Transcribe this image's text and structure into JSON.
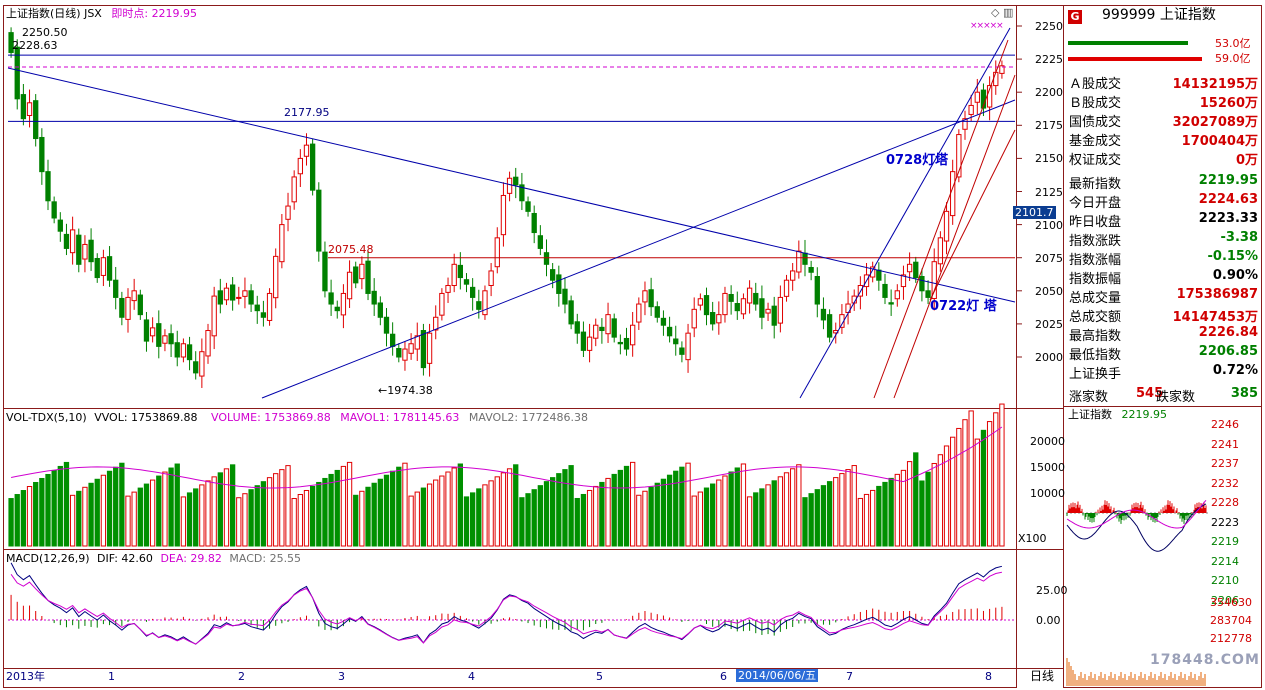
{
  "main": {
    "title": "上证指数(日线) JSX",
    "instant_label": "即时点:",
    "instant_value": "2219.95",
    "annotations": {
      "high_2250": "2250.50",
      "high_2228": "2228.63",
      "peak_2177": "2177.95",
      "mid_2075": "2075.48",
      "low_1974": "←1974.38",
      "lighthouse_0728": "0728灯塔",
      "lighthouse_0722": "0722灯 塔"
    },
    "cursor_value": "2101.7"
  },
  "volume": {
    "title": "VOL-TDX(5,10)",
    "vvol": "VVOL: 1753869.88",
    "volume": "VOLUME: 1753869.88",
    "mavol1": "MAVOL1: 1781145.63",
    "mavol2": "MAVOL2: 1772486.38",
    "unit": "X100"
  },
  "macd": {
    "title": "MACD(12,26,9)",
    "dif": "DIF: 42.60",
    "dea": "DEA: 29.82",
    "macd": "MACD: 25.55"
  },
  "x_axis": {
    "labels": [
      "2013年",
      "1",
      "2",
      "3",
      "4",
      "5",
      "6",
      "7",
      "8"
    ],
    "cursor_date": "2014/06/06/五",
    "period": "日线"
  },
  "info": {
    "code": "999999",
    "name": "上证指数",
    "logo": "G",
    "buy_amount": "53.0亿",
    "sell_amount": "59.0亿",
    "rows": [
      {
        "k": "Ａ股成交",
        "v": "14132195万",
        "c": "#d00000"
      },
      {
        "k": "Ｂ股成交",
        "v": "15260万",
        "c": "#d00000"
      },
      {
        "k": "国债成交",
        "v": "32027089万",
        "c": "#d00000"
      },
      {
        "k": "基金成交",
        "v": "1700404万",
        "c": "#d00000"
      },
      {
        "k": "权证成交",
        "v": "0万",
        "c": "#d00000"
      },
      {
        "k": "最新指数",
        "v": "2219.95",
        "c": "#008000"
      },
      {
        "k": "今日开盘",
        "v": "2224.63",
        "c": "#d00000"
      },
      {
        "k": "昨日收盘",
        "v": "2223.33",
        "c": "#000000"
      },
      {
        "k": "指数涨跌",
        "v": "-3.38",
        "c": "#008000"
      },
      {
        "k": "指数涨幅",
        "v": "-0.15%",
        "c": "#008000"
      },
      {
        "k": "指数振幅",
        "v": "0.90%",
        "c": "#000000"
      },
      {
        "k": "总成交量",
        "v": "175386987",
        "c": "#d00000"
      },
      {
        "k": "总成交额",
        "v": "14147453万",
        "c": "#d00000"
      },
      {
        "k": "最高指数",
        "v": "2226.84",
        "c": "#d00000"
      },
      {
        "k": "最低指数",
        "v": "2206.85",
        "c": "#008000"
      },
      {
        "k": "上证换手",
        "v": "0.72%",
        "c": "#000000"
      }
    ],
    "up_label": "涨家数",
    "up_count": "545",
    "down_label": "跌家数",
    "down_count": "385"
  },
  "intraday": {
    "title": "上证指数",
    "value": "2219.95",
    "price_ticks": [
      "2246",
      "2241",
      "2237",
      "2232",
      "2228",
      "2223",
      "2219",
      "2214",
      "2210",
      "2206"
    ],
    "volume_ticks": [
      "354630",
      "283704",
      "212778"
    ]
  },
  "watermark": "178448.COM",
  "chart_data": [
    {
      "type": "candlestick",
      "title": "上证指数(日线)",
      "y_ticks": [
        2000,
        2025,
        2050,
        2075,
        2100,
        2125,
        2150,
        2175,
        2200,
        2225,
        2250
      ],
      "ylim": [
        1960,
        2260
      ],
      "x_labels": [
        "2013年",
        "1",
        "2",
        "3",
        "4",
        "5",
        "6",
        "7",
        "8"
      ],
      "close": [
        2230,
        2195,
        2180,
        2192,
        2165,
        2140,
        2118,
        2105,
        2095,
        2082,
        2096,
        2070,
        2085,
        2072,
        2060,
        2075,
        2058,
        2045,
        2030,
        2045,
        2050,
        2032,
        2012,
        2022,
        2008,
        2016,
        2010,
        2000,
        2010,
        1998,
        1988,
        2004,
        2020,
        2046,
        2040,
        2052,
        2043,
        2045,
        2050,
        2040,
        2035,
        2030,
        2048,
        2076,
        2100,
        2114,
        2136,
        2150,
        2160,
        2126,
        2080,
        2050,
        2040,
        2035,
        2048,
        2064,
        2056,
        2070,
        2048,
        2040,
        2030,
        2018,
        2008,
        2000,
        2006,
        2010,
        2016,
        1992,
        2018,
        2030,
        2048,
        2054,
        2070,
        2060,
        2055,
        2045,
        2036,
        2050,
        2065,
        2090,
        2122,
        2135,
        2130,
        2118,
        2110,
        2094,
        2082,
        2070,
        2058,
        2048,
        2040,
        2025,
        2018,
        2005,
        2015,
        2024,
        2020,
        2032,
        2015,
        2010,
        2006,
        2024,
        2040,
        2050,
        2038,
        2030,
        2024,
        2016,
        2010,
        2002,
        2018,
        2036,
        2044,
        2032,
        2025,
        2032,
        2048,
        2042,
        2035,
        2044,
        2052,
        2040,
        2030,
        2036,
        2024,
        2045,
        2058,
        2065,
        2080,
        2070,
        2064,
        2040,
        2028,
        2015,
        2020,
        2032,
        2040,
        2046,
        2054,
        2062,
        2068,
        2058,
        2045,
        2040,
        2050,
        2062,
        2070,
        2060,
        2050,
        2045,
        2072,
        2090,
        2110,
        2140,
        2168,
        2180,
        2190,
        2200,
        2188,
        2205,
        2215,
        2219.95
      ],
      "highs": {
        "2013-02": 2250.5,
        "2013-02b": 2228.63,
        "2013-05": 2177.95,
        "2013-03": 2075.48
      },
      "low": 1974.38,
      "horizontal_lines": [
        2228,
        2219,
        2178,
        2075
      ],
      "annotations": [
        "0728灯塔",
        "0722灯 塔"
      ]
    },
    {
      "type": "bar",
      "title": "VOL-TDX(5,10)",
      "series": [
        {
          "name": "VOLUME",
          "last": 1753869.88
        },
        {
          "name": "MAVOL1",
          "last": 1781145.63
        },
        {
          "name": "MAVOL2",
          "last": 1772486.38
        }
      ],
      "y_ticks": [
        10000,
        15000,
        20000
      ],
      "unit": "X100"
    },
    {
      "type": "line",
      "title": "MACD(12,26,9)",
      "series": [
        {
          "name": "DIF",
          "last": 42.6
        },
        {
          "name": "DEA",
          "last": 29.82
        },
        {
          "name": "MACD",
          "last": 25.55
        }
      ],
      "y_ticks": [
        0.0,
        25.0
      ]
    }
  ]
}
